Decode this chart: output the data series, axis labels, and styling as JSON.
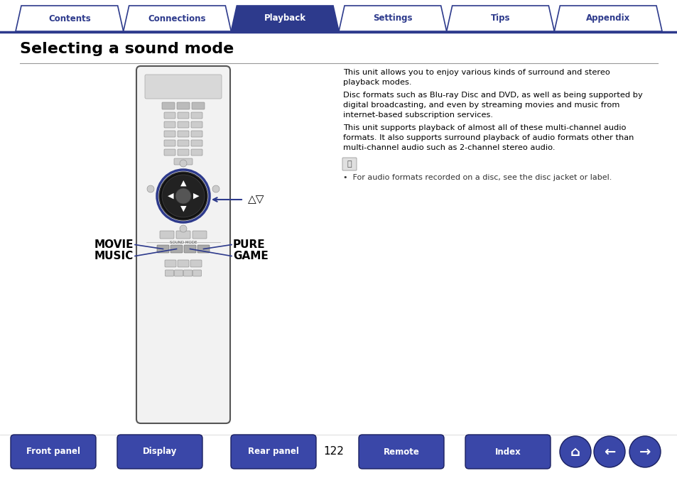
{
  "bg_color": "#ffffff",
  "nav_tabs": [
    "Contents",
    "Connections",
    "Playback",
    "Settings",
    "Tips",
    "Appendix"
  ],
  "nav_active": 2,
  "nav_color_active": "#2d3a8c",
  "nav_color_inactive": "#ffffff",
  "nav_text_color_active": "#ffffff",
  "nav_text_color_inactive": "#2d3a8c",
  "nav_border_color": "#2d3a8c",
  "title": "Selecting a sound mode",
  "title_fontsize": 16,
  "title_color": "#000000",
  "body_text_1": "This unit allows you to enjoy various kinds of surround and stereo",
  "body_text_1b": "playback modes.",
  "body_text_2a": "Disc formats such as Blu-ray Disc and DVD, as well as being supported by",
  "body_text_2b": "digital broadcasting, and even by streaming movies and music from",
  "body_text_2c": "internet-based subscription services.",
  "body_text_3a": "This unit supports playback of almost all of these multi-channel audio",
  "body_text_3b": "formats. It also supports surround playback of audio formats other than",
  "body_text_3c": "multi-channel audio such as 2-channel stereo audio.",
  "note_bullet": "•  For audio formats recorded on a disc, see the disc jacket or label.",
  "bottom_buttons": [
    "Front panel",
    "Display",
    "Rear panel",
    "Remote",
    "Index"
  ],
  "page_number": "122",
  "remote_label_left_1": "MOVIE",
  "remote_label_left_2": "MUSIC",
  "remote_label_right_1": "PURE",
  "remote_label_right_2": "GAME",
  "arrow_label": "△▽",
  "button_blue": "#3a47a8",
  "line_color": "#2d3a8c",
  "text_color_body": "#000000",
  "text_color_small": "#333333",
  "remote_body_color": "#f2f2f2",
  "remote_border_color": "#555555",
  "btn_color": "#cccccc",
  "btn_border": "#888888",
  "dpad_outer": "#1a1a1a",
  "dpad_inner": "#2a2a2a",
  "dpad_blue": "#2d3a8c"
}
